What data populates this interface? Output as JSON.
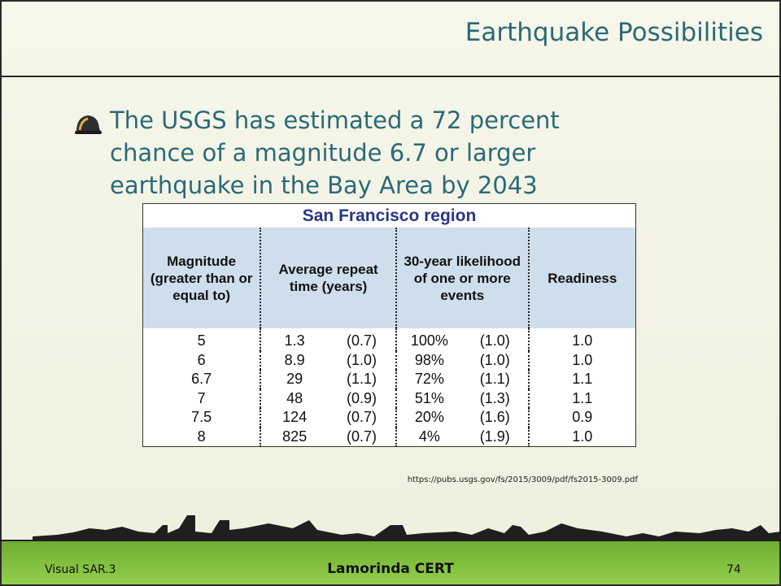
{
  "slide": {
    "title": "Earthquake Possibilities",
    "bullet": "The USGS has estimated a 72 percent chance of a magnitude 6.7 or larger earthquake in the Bay Area by 2043"
  },
  "table": {
    "title": "San Francisco region",
    "headers": [
      "Magnitude (greater than or equal to)",
      "Average repeat time (years)",
      "30-year likelihood of one or more events",
      "Readiness"
    ],
    "rows": [
      [
        "5",
        "1.3",
        "(0.7)",
        "100%",
        "(1.0)",
        "1.0"
      ],
      [
        "6",
        "8.9",
        "(1.0)",
        "98%",
        "(1.0)",
        "1.0"
      ],
      [
        "6.7",
        "29",
        "(1.1)",
        "72%",
        "(1.1)",
        "1.1"
      ],
      [
        "7",
        "48",
        "(0.9)",
        "51%",
        "(1.3)",
        "1.1"
      ],
      [
        "7.5",
        "124",
        "(0.7)",
        "20%",
        "(1.6)",
        "0.9"
      ],
      [
        "8",
        "825",
        "(0.7)",
        "4%",
        "(1.9)",
        "1.0"
      ]
    ]
  },
  "source": "https://pubs.usgs.gov/fs/2015/3009/pdf/fs2015-3009.pdf",
  "footer": {
    "left": "Visual SAR.3",
    "center": "Lamorinda CERT",
    "page": "74"
  }
}
